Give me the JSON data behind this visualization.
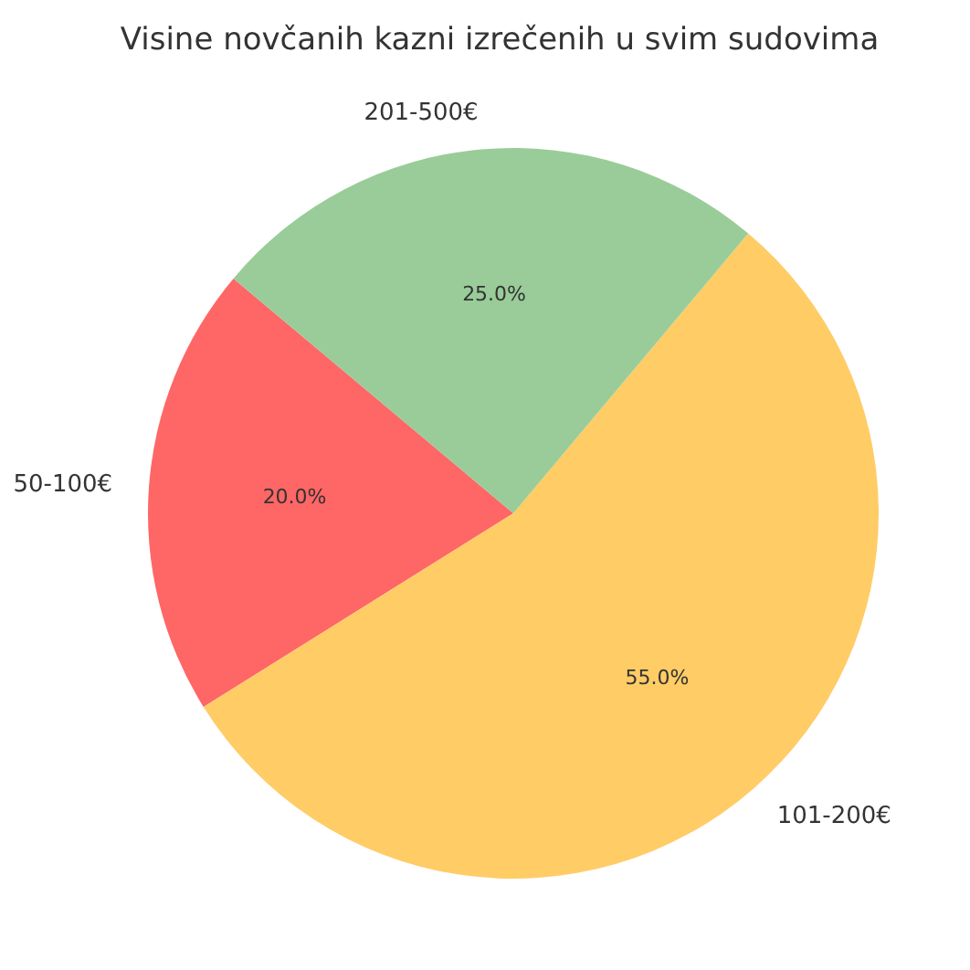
{
  "chart_data": {
    "type": "pie",
    "title": "Visine novčanih kazni izrečenih u svim sudovima",
    "categories": [
      "50-100€",
      "101-200€",
      "201-500€"
    ],
    "values": [
      20,
      55,
      25
    ],
    "colors": [
      "#ff6666",
      "#ffcc66",
      "#99cc99"
    ],
    "value_labels": [
      "20.0%",
      "55.0%",
      "25.0%"
    ]
  }
}
